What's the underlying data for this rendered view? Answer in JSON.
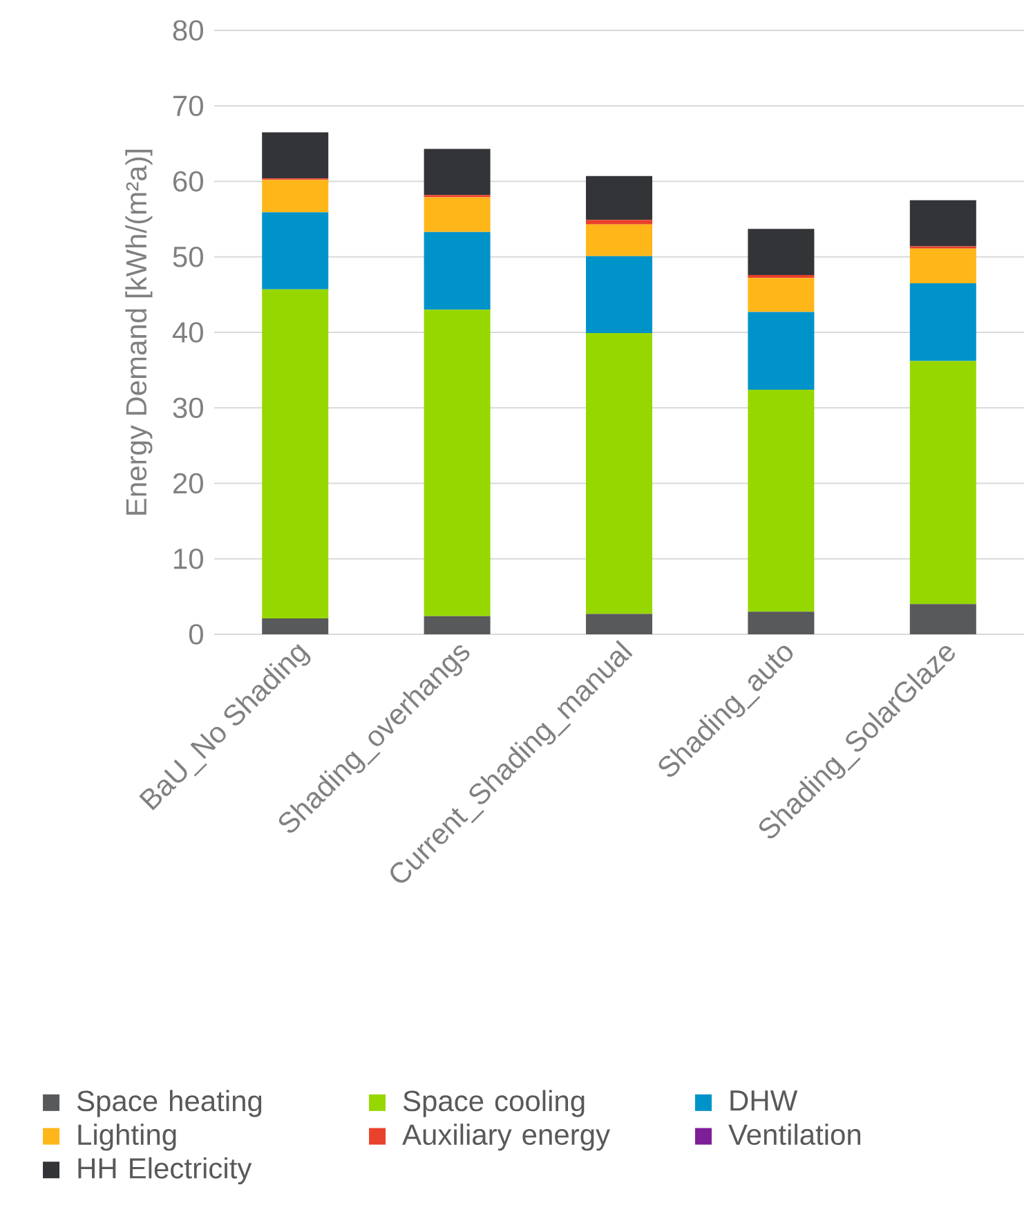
{
  "chart_data": {
    "type": "bar",
    "stacked": true,
    "ylabel": "Energy Demand [kWh/(m²a)]",
    "categories": [
      "BaU_No Shading",
      "Shading_overhangs",
      "Current_Shading_manual",
      "Shading_auto",
      "Shading_SolarGlaze"
    ],
    "series": [
      {
        "name": "Space heating",
        "color": "#58595b",
        "values": [
          2.1,
          2.4,
          2.7,
          3.0,
          4.0
        ]
      },
      {
        "name": "Space cooling",
        "color": "#97d700",
        "values": [
          43.6,
          40.6,
          37.2,
          29.4,
          32.2
        ]
      },
      {
        "name": "DHW",
        "color": "#0093c9",
        "values": [
          10.2,
          10.3,
          10.2,
          10.3,
          10.3
        ]
      },
      {
        "name": "Lighting",
        "color": "#ffb619",
        "values": [
          4.3,
          4.6,
          4.2,
          4.5,
          4.6
        ]
      },
      {
        "name": "Auxiliary energy",
        "color": "#e8412c",
        "values": [
          0.2,
          0.3,
          0.6,
          0.4,
          0.3
        ]
      },
      {
        "name": "Ventilation",
        "color": "#7e1e98",
        "values": [
          0,
          0,
          0,
          0,
          0
        ]
      },
      {
        "name": "HH Electricity",
        "color": "#333437",
        "values": [
          6.1,
          6.1,
          5.8,
          6.1,
          6.1
        ]
      }
    ],
    "ylim": [
      0,
      80
    ],
    "yticks": [
      0,
      10,
      20,
      30,
      40,
      50,
      60,
      70,
      80
    ],
    "grid": "y",
    "legend": "bottom"
  }
}
